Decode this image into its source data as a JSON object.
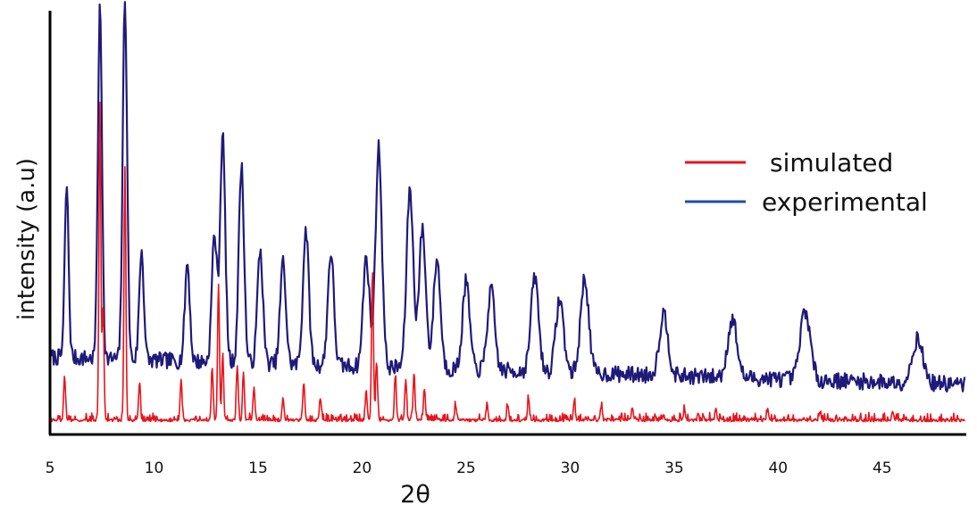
{
  "chart_data": {
    "type": "line",
    "title": "",
    "xlabel": "2θ",
    "ylabel": "intensity (a.u)",
    "xlim": [
      5,
      49
    ],
    "ylim": [
      0,
      1
    ],
    "x_ticks": [
      5,
      10,
      15,
      20,
      25,
      30,
      35,
      40,
      45
    ],
    "y_ticks": [],
    "grid": false,
    "legend_position": "right",
    "series": [
      {
        "name": "simulated",
        "color": "#e8141c",
        "peaks": [
          {
            "x": 5.7,
            "y": 0.12
          },
          {
            "x": 7.4,
            "y": 0.86
          },
          {
            "x": 7.55,
            "y": 0.3
          },
          {
            "x": 8.6,
            "y": 0.69
          },
          {
            "x": 9.3,
            "y": 0.1
          },
          {
            "x": 11.3,
            "y": 0.11
          },
          {
            "x": 12.8,
            "y": 0.14
          },
          {
            "x": 13.1,
            "y": 0.37
          },
          {
            "x": 13.3,
            "y": 0.18
          },
          {
            "x": 14.0,
            "y": 0.15
          },
          {
            "x": 14.3,
            "y": 0.13
          },
          {
            "x": 14.8,
            "y": 0.08
          },
          {
            "x": 16.2,
            "y": 0.06
          },
          {
            "x": 17.2,
            "y": 0.1
          },
          {
            "x": 18.0,
            "y": 0.06
          },
          {
            "x": 20.2,
            "y": 0.08
          },
          {
            "x": 20.5,
            "y": 0.41
          },
          {
            "x": 20.7,
            "y": 0.16
          },
          {
            "x": 21.6,
            "y": 0.12
          },
          {
            "x": 22.1,
            "y": 0.11
          },
          {
            "x": 22.5,
            "y": 0.13
          },
          {
            "x": 23.0,
            "y": 0.08
          },
          {
            "x": 24.5,
            "y": 0.04
          },
          {
            "x": 26.0,
            "y": 0.04
          },
          {
            "x": 27.0,
            "y": 0.04
          },
          {
            "x": 28.0,
            "y": 0.06
          },
          {
            "x": 30.2,
            "y": 0.05
          },
          {
            "x": 31.5,
            "y": 0.04
          },
          {
            "x": 33.0,
            "y": 0.03
          },
          {
            "x": 35.5,
            "y": 0.03
          },
          {
            "x": 37.0,
            "y": 0.03
          },
          {
            "x": 39.5,
            "y": 0.03
          },
          {
            "x": 42.0,
            "y": 0.02
          },
          {
            "x": 45.5,
            "y": 0.02
          }
        ]
      },
      {
        "name": "experimental",
        "color": "#1f1a7a",
        "peaks": [
          {
            "x": 5.8,
            "y": 0.47
          },
          {
            "x": 7.4,
            "y": 0.96
          },
          {
            "x": 8.6,
            "y": 0.99
          },
          {
            "x": 9.4,
            "y": 0.3
          },
          {
            "x": 11.6,
            "y": 0.27
          },
          {
            "x": 12.9,
            "y": 0.35
          },
          {
            "x": 13.3,
            "y": 0.62
          },
          {
            "x": 14.2,
            "y": 0.54
          },
          {
            "x": 15.1,
            "y": 0.31
          },
          {
            "x": 16.2,
            "y": 0.28
          },
          {
            "x": 17.3,
            "y": 0.37
          },
          {
            "x": 18.5,
            "y": 0.31
          },
          {
            "x": 20.2,
            "y": 0.3
          },
          {
            "x": 20.8,
            "y": 0.6
          },
          {
            "x": 22.3,
            "y": 0.49
          },
          {
            "x": 22.9,
            "y": 0.38
          },
          {
            "x": 23.6,
            "y": 0.3
          },
          {
            "x": 25.0,
            "y": 0.24
          },
          {
            "x": 26.2,
            "y": 0.22
          },
          {
            "x": 28.3,
            "y": 0.26
          },
          {
            "x": 29.5,
            "y": 0.2
          },
          {
            "x": 30.7,
            "y": 0.26
          },
          {
            "x": 34.5,
            "y": 0.17
          },
          {
            "x": 37.8,
            "y": 0.16
          },
          {
            "x": 41.3,
            "y": 0.19
          },
          {
            "x": 46.7,
            "y": 0.12
          }
        ]
      }
    ]
  }
}
